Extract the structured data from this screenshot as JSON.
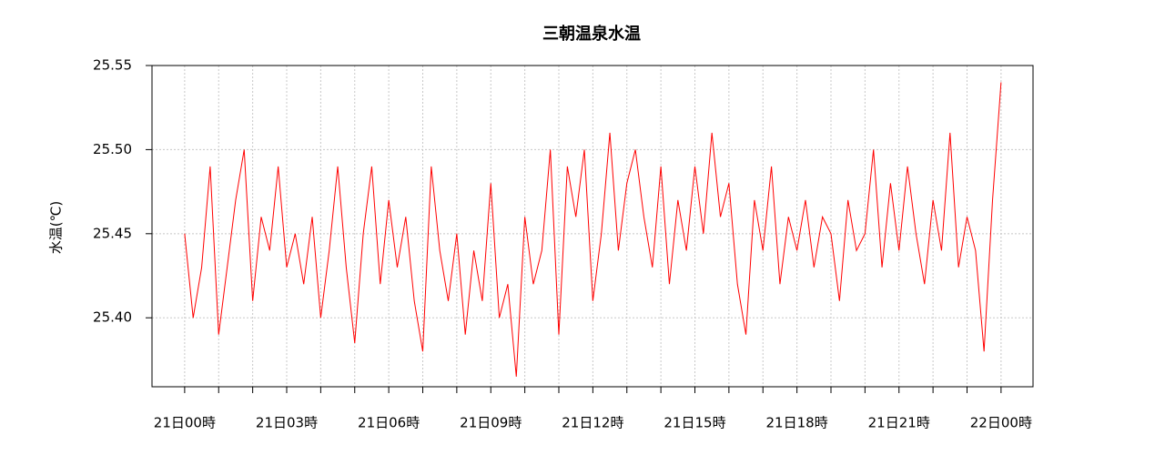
{
  "chart_data": {
    "type": "line",
    "title": "三朝温泉水温",
    "y_label": "水温(℃)",
    "color": "#ff0000",
    "x": [
      0,
      0.25,
      0.5,
      0.75,
      1,
      1.25,
      1.5,
      1.75,
      2,
      2.25,
      2.5,
      2.75,
      3,
      3.25,
      3.5,
      3.75,
      4,
      4.25,
      4.5,
      4.75,
      5,
      5.25,
      5.5,
      5.75,
      6,
      6.25,
      6.5,
      6.75,
      7,
      7.25,
      7.5,
      7.75,
      8,
      8.25,
      8.5,
      8.75,
      9,
      9.25,
      9.5,
      9.75,
      10,
      10.25,
      10.5,
      10.75,
      11,
      11.25,
      11.5,
      11.75,
      12,
      12.25,
      12.5,
      12.75,
      13,
      13.25,
      13.5,
      13.75,
      14,
      14.25,
      14.5,
      14.75,
      15,
      15.25,
      15.5,
      15.75,
      16,
      16.25,
      16.5,
      16.75,
      17,
      17.25,
      17.5,
      17.75,
      18,
      18.25,
      18.5,
      18.75,
      19,
      19.25,
      19.5,
      19.75,
      20,
      20.25,
      20.5,
      20.75,
      21,
      21.25,
      21.5,
      21.75,
      22,
      22.25,
      22.5,
      22.75,
      23,
      23.25,
      23.5,
      23.75,
      24
    ],
    "values": [
      25.45,
      25.4,
      25.43,
      25.49,
      25.39,
      25.43,
      25.47,
      25.5,
      25.41,
      25.46,
      25.44,
      25.49,
      25.43,
      25.45,
      25.42,
      25.46,
      25.4,
      25.44,
      25.49,
      25.43,
      25.385,
      25.45,
      25.49,
      25.42,
      25.47,
      25.43,
      25.46,
      25.41,
      25.38,
      25.49,
      25.44,
      25.41,
      25.45,
      25.39,
      25.44,
      25.41,
      25.48,
      25.4,
      25.42,
      25.365,
      25.46,
      25.42,
      25.44,
      25.5,
      25.39,
      25.49,
      25.46,
      25.5,
      25.41,
      25.45,
      25.51,
      25.44,
      25.48,
      25.5,
      25.46,
      25.43,
      25.49,
      25.42,
      25.47,
      25.44,
      25.49,
      25.45,
      25.51,
      25.46,
      25.48,
      25.42,
      25.39,
      25.47,
      25.44,
      25.49,
      25.42,
      25.46,
      25.44,
      25.47,
      25.43,
      25.46,
      25.45,
      25.41,
      25.47,
      25.44,
      25.45,
      25.5,
      25.43,
      25.48,
      25.44,
      25.49,
      25.45,
      25.42,
      25.47,
      25.44,
      25.51,
      25.43,
      25.46,
      25.44,
      25.38,
      25.47,
      25.54
    ],
    "xlim": [
      -0.96,
      24.94
    ],
    "xticks": [
      {
        "value": 0,
        "label": "21日00時"
      },
      {
        "value": 3,
        "label": "21日03時"
      },
      {
        "value": 6,
        "label": "21日06時"
      },
      {
        "value": 9,
        "label": "21日09時"
      },
      {
        "value": 12,
        "label": "21日12時"
      },
      {
        "value": 15,
        "label": "21日15時"
      },
      {
        "value": 18,
        "label": "21日18時"
      },
      {
        "value": 21,
        "label": "21日21時"
      },
      {
        "value": 24,
        "label": "22日00時"
      }
    ],
    "xminorticks": [
      1,
      2,
      4,
      5,
      7,
      8,
      10,
      11,
      13,
      14,
      16,
      17,
      19,
      20,
      22,
      23
    ],
    "ylim": [
      25.359,
      25.55
    ],
    "yticks": [
      {
        "value": 25.4,
        "label": "25.40"
      },
      25.45,
      {
        "value": 25.5,
        "label": "25.50"
      },
      25.55
    ],
    "grid": true
  }
}
